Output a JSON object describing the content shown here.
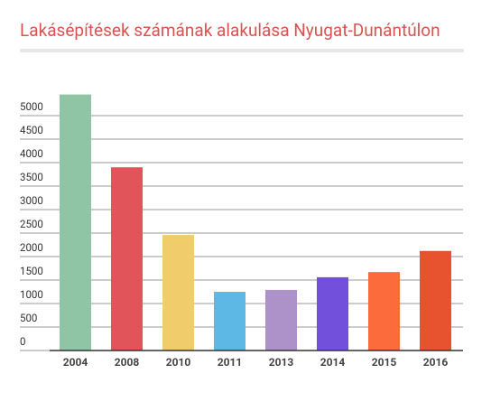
{
  "chart_data": {
    "type": "bar",
    "title": "Lakásépítések számának alakulása Nyugat-Dunántúlon",
    "categories": [
      "2004",
      "2008",
      "2010",
      "2011",
      "2013",
      "2014",
      "2015",
      "2016"
    ],
    "values": [
      5450,
      3900,
      2460,
      1250,
      1290,
      1560,
      1670,
      2120
    ],
    "colors": [
      "#8fc4a4",
      "#e0545a",
      "#f0cd6a",
      "#5db8e6",
      "#ad92c9",
      "#7350dc",
      "#fb6b3c",
      "#e6532e"
    ],
    "ylim": [
      0,
      5500
    ],
    "yticks": [
      0,
      500,
      1000,
      1500,
      2000,
      2500,
      3000,
      3500,
      4000,
      4500,
      5000
    ],
    "grid": true
  }
}
